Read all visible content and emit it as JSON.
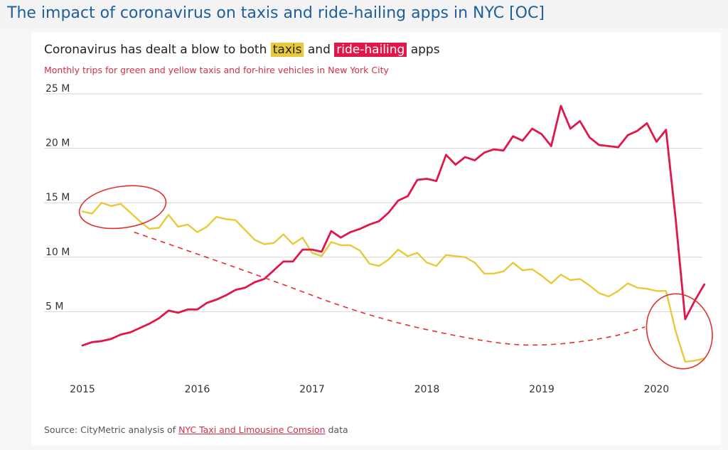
{
  "post": {
    "title": "The impact of coronavirus on taxis and ride-hailing apps in NYC [OC]"
  },
  "chart_data": {
    "type": "line",
    "title_parts": [
      "Coronavirus has dealt a blow to both ",
      "taxis",
      " and ",
      "ride-hailing",
      " apps"
    ],
    "subtitle": "Monthly trips for green and yellow taxis and for-hire vehicles in New York City",
    "source_prefix": "Source: CityMetric analysis of ",
    "source_link": "NYC Taxi and Limousine Comsion",
    "source_suffix": " data",
    "y_ticks": [
      {
        "value": 5,
        "label": "5 M"
      },
      {
        "value": 10,
        "label": "10 M"
      },
      {
        "value": 15,
        "label": "15 M"
      },
      {
        "value": 20,
        "label": "20 M"
      },
      {
        "value": 25,
        "label": "25 M"
      }
    ],
    "x_ticks": [
      {
        "value": 2015,
        "label": "2015"
      },
      {
        "value": 2016,
        "label": "2016"
      },
      {
        "value": 2017,
        "label": "2017"
      },
      {
        "value": 2018,
        "label": "2018"
      },
      {
        "value": 2019,
        "label": "2019"
      },
      {
        "value": 2020,
        "label": "2020"
      }
    ],
    "xlim": [
      2015,
      2020.4
    ],
    "ylim": [
      0,
      25
    ],
    "grid": true,
    "series": [
      {
        "name": "taxis",
        "color": "#e8c93a",
        "points": [
          [
            2015.0,
            14.2
          ],
          [
            2015.083,
            14.0
          ],
          [
            2015.167,
            15.0
          ],
          [
            2015.25,
            14.7
          ],
          [
            2015.333,
            14.9
          ],
          [
            2015.417,
            14.1
          ],
          [
            2015.5,
            13.3
          ],
          [
            2015.583,
            12.6
          ],
          [
            2015.667,
            12.7
          ],
          [
            2015.75,
            13.9
          ],
          [
            2015.833,
            12.8
          ],
          [
            2015.917,
            13.0
          ],
          [
            2016.0,
            12.3
          ],
          [
            2016.083,
            12.8
          ],
          [
            2016.167,
            13.7
          ],
          [
            2016.25,
            13.5
          ],
          [
            2016.333,
            13.4
          ],
          [
            2016.417,
            12.5
          ],
          [
            2016.5,
            11.6
          ],
          [
            2016.583,
            11.2
          ],
          [
            2016.667,
            11.3
          ],
          [
            2016.75,
            12.1
          ],
          [
            2016.833,
            11.2
          ],
          [
            2016.917,
            11.8
          ],
          [
            2017.0,
            10.4
          ],
          [
            2017.083,
            10.1
          ],
          [
            2017.167,
            11.4
          ],
          [
            2017.25,
            11.1
          ],
          [
            2017.333,
            11.1
          ],
          [
            2017.417,
            10.6
          ],
          [
            2017.5,
            9.4
          ],
          [
            2017.583,
            9.2
          ],
          [
            2017.667,
            9.8
          ],
          [
            2017.75,
            10.7
          ],
          [
            2017.833,
            10.1
          ],
          [
            2017.917,
            10.4
          ],
          [
            2018.0,
            9.5
          ],
          [
            2018.083,
            9.2
          ],
          [
            2018.167,
            10.2
          ],
          [
            2018.25,
            10.1
          ],
          [
            2018.333,
            10.0
          ],
          [
            2018.417,
            9.5
          ],
          [
            2018.5,
            8.5
          ],
          [
            2018.583,
            8.5
          ],
          [
            2018.667,
            8.7
          ],
          [
            2018.75,
            9.5
          ],
          [
            2018.833,
            8.8
          ],
          [
            2018.917,
            8.9
          ],
          [
            2019.0,
            8.3
          ],
          [
            2019.083,
            7.6
          ],
          [
            2019.167,
            8.4
          ],
          [
            2019.25,
            7.9
          ],
          [
            2019.333,
            8.0
          ],
          [
            2019.417,
            7.4
          ],
          [
            2019.5,
            6.7
          ],
          [
            2019.583,
            6.4
          ],
          [
            2019.667,
            6.9
          ],
          [
            2019.75,
            7.6
          ],
          [
            2019.833,
            7.2
          ],
          [
            2019.917,
            7.1
          ],
          [
            2020.0,
            6.9
          ],
          [
            2020.083,
            6.9
          ],
          [
            2020.167,
            3.2
          ],
          [
            2020.25,
            0.4
          ],
          [
            2020.333,
            0.5
          ],
          [
            2020.417,
            0.7
          ]
        ]
      },
      {
        "name": "ride-hailing",
        "color": "#e0174a",
        "points": [
          [
            2015.0,
            1.9
          ],
          [
            2015.083,
            2.2
          ],
          [
            2015.167,
            2.3
          ],
          [
            2015.25,
            2.5
          ],
          [
            2015.333,
            2.9
          ],
          [
            2015.417,
            3.1
          ],
          [
            2015.5,
            3.5
          ],
          [
            2015.583,
            3.9
          ],
          [
            2015.667,
            4.4
          ],
          [
            2015.75,
            5.1
          ],
          [
            2015.833,
            4.9
          ],
          [
            2015.917,
            5.2
          ],
          [
            2016.0,
            5.2
          ],
          [
            2016.083,
            5.8
          ],
          [
            2016.167,
            6.1
          ],
          [
            2016.25,
            6.5
          ],
          [
            2016.333,
            7.0
          ],
          [
            2016.417,
            7.2
          ],
          [
            2016.5,
            7.7
          ],
          [
            2016.583,
            8.0
          ],
          [
            2016.667,
            8.8
          ],
          [
            2016.75,
            9.6
          ],
          [
            2016.833,
            9.6
          ],
          [
            2016.917,
            10.7
          ],
          [
            2017.0,
            10.7
          ],
          [
            2017.083,
            10.5
          ],
          [
            2017.167,
            12.4
          ],
          [
            2017.25,
            11.8
          ],
          [
            2017.333,
            12.3
          ],
          [
            2017.417,
            12.6
          ],
          [
            2017.5,
            13.0
          ],
          [
            2017.583,
            13.3
          ],
          [
            2017.667,
            14.1
          ],
          [
            2017.75,
            15.2
          ],
          [
            2017.833,
            15.6
          ],
          [
            2017.917,
            17.1
          ],
          [
            2018.0,
            17.2
          ],
          [
            2018.083,
            17.0
          ],
          [
            2018.167,
            19.4
          ],
          [
            2018.25,
            18.5
          ],
          [
            2018.333,
            19.2
          ],
          [
            2018.417,
            18.9
          ],
          [
            2018.5,
            19.6
          ],
          [
            2018.583,
            19.9
          ],
          [
            2018.667,
            19.8
          ],
          [
            2018.75,
            21.1
          ],
          [
            2018.833,
            20.7
          ],
          [
            2018.917,
            21.8
          ],
          [
            2019.0,
            21.3
          ],
          [
            2019.083,
            20.2
          ],
          [
            2019.167,
            23.9
          ],
          [
            2019.25,
            21.8
          ],
          [
            2019.333,
            22.5
          ],
          [
            2019.417,
            21.0
          ],
          [
            2019.5,
            20.3
          ],
          [
            2019.583,
            20.2
          ],
          [
            2019.667,
            20.1
          ],
          [
            2019.75,
            21.2
          ],
          [
            2019.833,
            21.6
          ],
          [
            2019.917,
            22.3
          ],
          [
            2020.0,
            20.6
          ],
          [
            2020.083,
            21.7
          ],
          [
            2020.167,
            13.5
          ],
          [
            2020.25,
            4.3
          ],
          [
            2020.333,
            6.0
          ],
          [
            2020.417,
            7.5
          ]
        ]
      }
    ],
    "annotations": [
      {
        "kind": "ellipse",
        "color": "#e0312f",
        "center": [
          2015.35,
          14.6
        ],
        "radius": [
          0.38,
          1.9
        ]
      },
      {
        "kind": "ellipse",
        "color": "#e0312f",
        "center": [
          2020.2,
          3.2
        ],
        "radius": [
          0.28,
          3.5
        ]
      },
      {
        "kind": "dashed-curve",
        "color": "#e0312f",
        "points": [
          [
            2015.45,
            12.3
          ],
          [
            2016.5,
            8.5
          ],
          [
            2017.5,
            4.5
          ],
          [
            2018.5,
            2.2
          ],
          [
            2019.0,
            1.8
          ],
          [
            2019.6,
            2.6
          ],
          [
            2019.9,
            3.6
          ]
        ]
      }
    ]
  }
}
